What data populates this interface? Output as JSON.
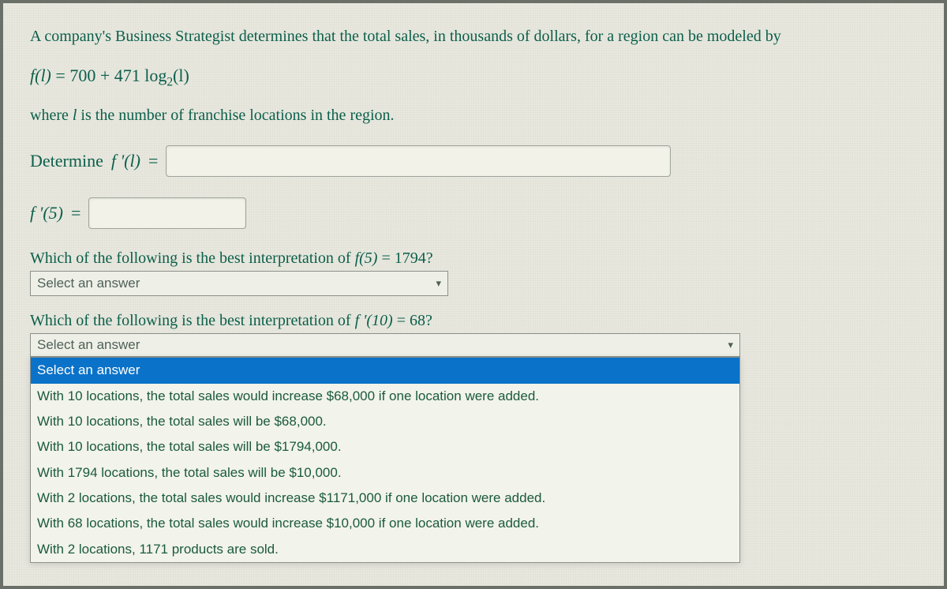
{
  "colors": {
    "text": "#0b5f4a",
    "background": "#e8e8df",
    "input_border": "#9fa49b",
    "dropdown_highlight_bg": "#0a72c8",
    "dropdown_highlight_text": "#ffffff",
    "panel_bg": "#f2f3ea",
    "muted_text": "#506057"
  },
  "intro": "A company's Business Strategist determines that the total sales, in thousands of dollars, for a region can be modeled by",
  "formula": {
    "lhs": "f(l)",
    "eq": "=",
    "rhs_prefix": "700 + 471 log",
    "rhs_sub": "2",
    "rhs_arg": "(l)"
  },
  "where": {
    "prefix": "where ",
    "var": "l",
    "suffix": " is the number of franchise locations in the region."
  },
  "determine": {
    "prefix": "Determine ",
    "expr": "f '(l)",
    "eq": "="
  },
  "fprime5": {
    "expr": "f '(5)",
    "eq": "="
  },
  "q1": {
    "text_prefix": "Which of the following is the best interpretation of ",
    "expr": "f(5)",
    "eq_val": " = 1794?",
    "placeholder": "Select an answer"
  },
  "q2": {
    "text_prefix": "Which of the following is the best interpretation of ",
    "expr": "f '(10)",
    "eq_val": " = 68?",
    "placeholder": "Select an answer",
    "options": [
      "Select an answer",
      "With 10 locations, the total sales would increase $68,000 if one location were added.",
      "With 10 locations, the total sales will be $68,000.",
      "With 10 locations, the total sales will be $1794,000.",
      "With 1794 locations, the total sales will be $10,000.",
      "With 2 locations, the total sales would increase $1171,000 if one location were added.",
      "With 68 locations, the total sales would increase $10,000 if one location were added.",
      "With 2 locations, 1171 products are sold."
    ],
    "highlighted_index": 0
  }
}
